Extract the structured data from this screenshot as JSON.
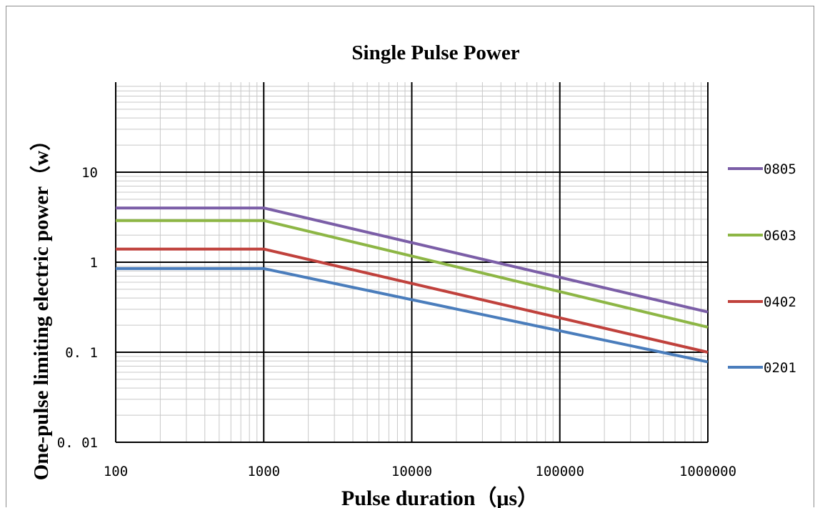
{
  "chart_data": {
    "type": "line",
    "title": "Single  Pulse  Power",
    "xlabel": "Pulse duration（μs）",
    "ylabel": "One-pulse limiting electric power（w）",
    "x_scale": "log",
    "y_scale": "log",
    "xlim": [
      100,
      1000000
    ],
    "ylim": [
      0.01,
      100
    ],
    "x_ticks": [
      100,
      1000,
      10000,
      100000,
      1000000
    ],
    "x_tick_labels": [
      "100",
      "1000",
      "10000",
      "100000",
      "1000000"
    ],
    "y_ticks": [
      0.01,
      0.1,
      1,
      10
    ],
    "y_tick_labels": [
      "0. 01",
      "0. 1",
      "1",
      "10"
    ],
    "grid": true,
    "legend_position": "right",
    "series": [
      {
        "name": "0805",
        "color": "#7b5ea7",
        "x": [
          100,
          1000,
          1000000
        ],
        "y": [
          4.0,
          4.0,
          0.28
        ]
      },
      {
        "name": "0603",
        "color": "#8db645",
        "x": [
          100,
          1000,
          1000000
        ],
        "y": [
          2.9,
          2.9,
          0.19
        ]
      },
      {
        "name": "0402",
        "color": "#c0413c",
        "x": [
          100,
          1000,
          1000000
        ],
        "y": [
          1.4,
          1.4,
          0.1
        ]
      },
      {
        "name": "0201",
        "color": "#4a7dbc",
        "x": [
          100,
          1000,
          1000000
        ],
        "y": [
          0.85,
          0.85,
          0.078
        ]
      }
    ]
  }
}
